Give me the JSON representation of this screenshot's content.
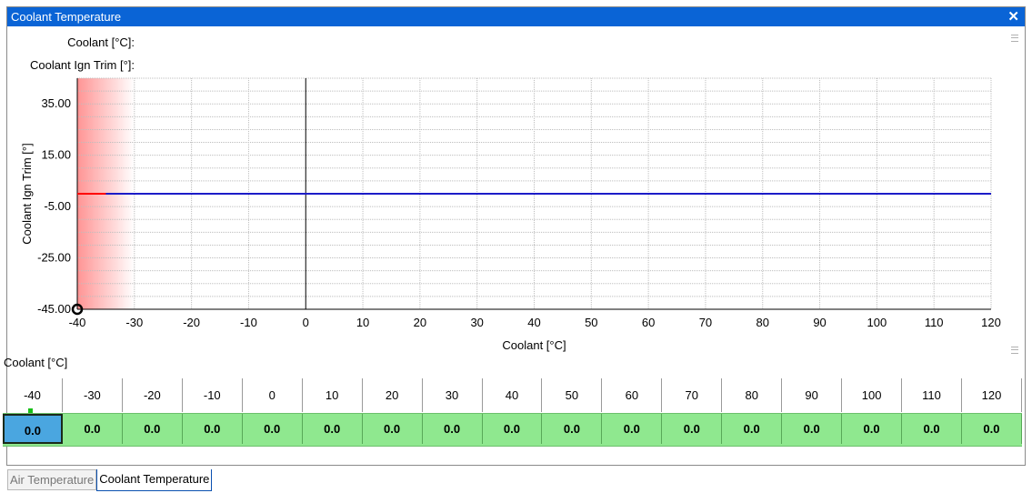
{
  "window": {
    "title": "Coolant Temperature",
    "close_glyph": "✕"
  },
  "info": {
    "coolant_label": "Coolant [°C]:",
    "trim_label": "Coolant Ign Trim [°]:"
  },
  "chart_data": {
    "type": "line",
    "xlabel": "Coolant [°C]",
    "ylabel": "Coolant Ign Trim [°]",
    "x": [
      -40,
      -30,
      -20,
      -10,
      0,
      10,
      20,
      30,
      40,
      50,
      60,
      70,
      80,
      90,
      100,
      110,
      120
    ],
    "series": [
      {
        "values": [
          0,
          0,
          0,
          0,
          0,
          0,
          0,
          0,
          0,
          0,
          0,
          0,
          0,
          0,
          0,
          0,
          0
        ],
        "color": "#1c1cc8"
      }
    ],
    "xlim": [
      -40,
      120
    ],
    "ylim": [
      -45,
      45
    ],
    "y_tick_labels": [
      "35.00",
      "15.00",
      "-5.00",
      "-25.00",
      "-45.00"
    ],
    "y_ticks": [
      35,
      15,
      -5,
      -25,
      -45
    ],
    "grid": true,
    "highlight_color": "#ff0000",
    "selected_x": -40
  },
  "table": {
    "caption": "Coolant [°C]",
    "headers": [
      "-40",
      "-30",
      "-20",
      "-10",
      "0",
      "10",
      "20",
      "30",
      "40",
      "50",
      "60",
      "70",
      "80",
      "90",
      "100",
      "110",
      "120"
    ],
    "values": [
      "0.0",
      "0.0",
      "0.0",
      "0.0",
      "0.0",
      "0.0",
      "0.0",
      "0.0",
      "0.0",
      "0.0",
      "0.0",
      "0.0",
      "0.0",
      "0.0",
      "0.0",
      "0.0",
      "0.0"
    ],
    "selected_index": 0,
    "cell_color": "#8fe88f",
    "selected_color": "#4aa6e0"
  },
  "tabs": [
    {
      "label": "Air Temperature",
      "active": false
    },
    {
      "label": "Coolant Temperature",
      "active": true
    }
  ]
}
